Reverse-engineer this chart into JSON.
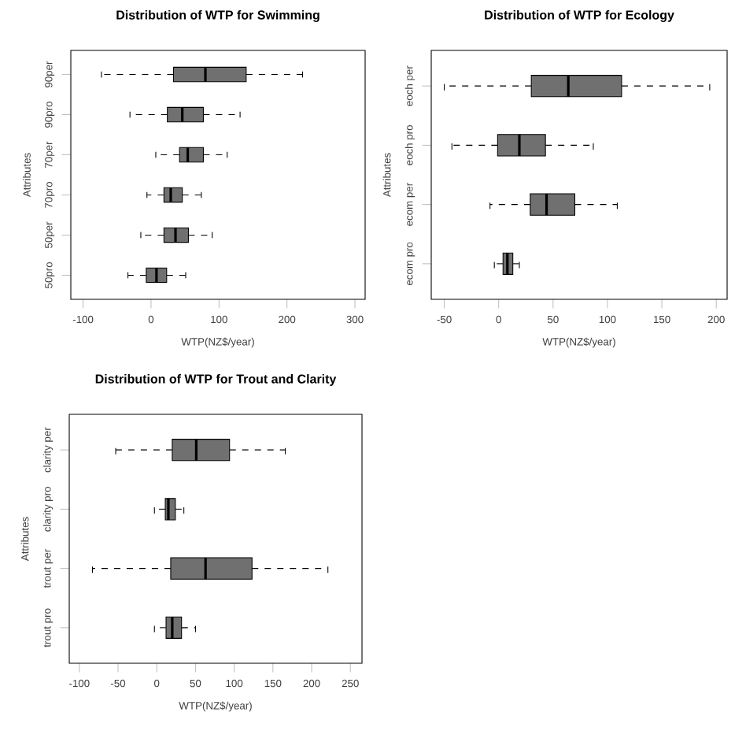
{
  "chart_data": [
    {
      "type": "box",
      "orientation": "horizontal",
      "title": "Distribution of WTP for Swimming",
      "xlabel": "WTP(NZ$/year)",
      "ylabel": "Attributes",
      "color": "#707070",
      "categories": [
        "90per",
        "90pro",
        "70per",
        "70pro",
        "50per",
        "50pro"
      ],
      "xlim": [
        -118,
        315
      ],
      "xticks": [
        -100,
        0,
        100,
        200,
        300
      ],
      "boxes": [
        {
          "low": -73,
          "q1": 33,
          "median": 80,
          "q3": 140,
          "high": 223
        },
        {
          "low": -31,
          "q1": 24,
          "median": 46,
          "q3": 77,
          "high": 131
        },
        {
          "low": 7,
          "q1": 42,
          "median": 54,
          "q3": 77,
          "high": 112
        },
        {
          "low": -6,
          "q1": 19,
          "median": 29,
          "q3": 46,
          "high": 74
        },
        {
          "low": -15,
          "q1": 19,
          "median": 36,
          "q3": 55,
          "high": 90
        },
        {
          "low": -34,
          "q1": -7,
          "median": 8,
          "q3": 23,
          "high": 51
        }
      ]
    },
    {
      "type": "box",
      "orientation": "horizontal",
      "title": "Distribution of WTP for Ecology",
      "xlabel": "WTP(NZ$/year)",
      "ylabel": "Attributes",
      "color": "#707070",
      "categories": [
        "eoch per",
        "eoch pro",
        "ecom per",
        "ecom pro"
      ],
      "xlim": [
        -62,
        210
      ],
      "xticks": [
        -50,
        0,
        50,
        100,
        150,
        200
      ],
      "boxes": [
        {
          "low": -50,
          "q1": 30,
          "median": 64,
          "q3": 113,
          "high": 194
        },
        {
          "low": -43,
          "q1": -1,
          "median": 19,
          "q3": 43,
          "high": 87
        },
        {
          "low": -8,
          "q1": 29,
          "median": 44,
          "q3": 70,
          "high": 109
        },
        {
          "low": -4,
          "q1": 4,
          "median": 8,
          "q3": 13,
          "high": 19
        }
      ]
    },
    {
      "type": "box",
      "orientation": "horizontal",
      "title": "Distribution of WTP for Trout and Clarity",
      "xlabel": "WTP(NZ$/year)",
      "ylabel": "Attributes",
      "color": "#707070",
      "categories": [
        "clarity per",
        "clarity pro",
        "trout per",
        "trout pro"
      ],
      "xlim": [
        -113,
        265
      ],
      "xticks": [
        -100,
        -50,
        0,
        50,
        100,
        150,
        200,
        250
      ],
      "boxes": [
        {
          "low": -53,
          "q1": 20,
          "median": 51,
          "q3": 94,
          "high": 166
        },
        {
          "low": -3,
          "q1": 11,
          "median": 15,
          "q3": 24,
          "high": 35
        },
        {
          "low": -83,
          "q1": 18,
          "median": 63,
          "q3": 123,
          "high": 221
        },
        {
          "low": -3,
          "q1": 12,
          "median": 20,
          "q3": 32,
          "high": 50
        }
      ]
    }
  ]
}
